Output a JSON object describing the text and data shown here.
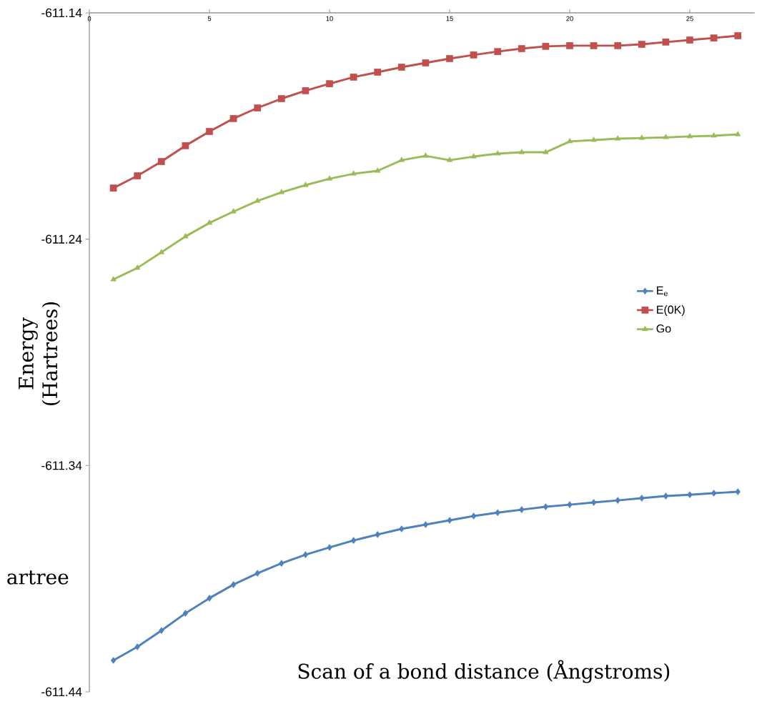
{
  "chart_data": {
    "type": "line",
    "xlabel": "Scan of a bond distance (Ångstroms)",
    "ylabel": "Energy (Hartrees)",
    "x": [
      1,
      2,
      3,
      4,
      5,
      6,
      7,
      8,
      9,
      10,
      11,
      12,
      13,
      14,
      15,
      16,
      17,
      18,
      19,
      20,
      21,
      22,
      23,
      24,
      25,
      26,
      27
    ],
    "series": [
      {
        "name": "E$_{e}$",
        "color": "#4f81bd",
        "marker": "diamond",
        "values": [
          -611.4261,
          -611.4201,
          -611.4129,
          -611.4053,
          -611.3986,
          -611.3926,
          -611.3876,
          -611.3832,
          -611.3794,
          -611.3762,
          -611.3731,
          -611.3705,
          -611.368,
          -611.3661,
          -611.3642,
          -611.3623,
          -611.3608,
          -611.3595,
          -611.3582,
          -611.3573,
          -611.3563,
          -611.3554,
          -611.3544,
          -611.3535,
          -611.3529,
          -611.3522,
          -611.3516
        ]
      },
      {
        "name": "E(0K)",
        "color": "#c0504d",
        "marker": "square",
        "values": [
          -611.2174,
          -611.212,
          -611.2057,
          -611.1987,
          -611.1924,
          -611.1867,
          -611.182,
          -611.1779,
          -611.1744,
          -611.1713,
          -611.1684,
          -611.1662,
          -611.164,
          -611.1621,
          -611.1602,
          -611.1586,
          -611.1571,
          -611.1558,
          -611.1548,
          -611.1545,
          -611.1545,
          -611.1545,
          -611.1539,
          -611.1529,
          -611.152,
          -611.1511,
          -611.1501
        ]
      },
      {
        "name": "Go",
        "color": "#9bbb59",
        "marker": "triangle",
        "values": [
          -611.2578,
          -611.2527,
          -611.2458,
          -611.2388,
          -611.2328,
          -611.2278,
          -611.2231,
          -611.2193,
          -611.2161,
          -611.2133,
          -611.2111,
          -611.2098,
          -611.2051,
          -611.2032,
          -611.2051,
          -611.2035,
          -611.2022,
          -611.2016,
          -611.2016,
          -611.1968,
          -611.1962,
          -611.1956,
          -611.1953,
          -611.195,
          -611.1946,
          -611.1943,
          -611.1937
        ]
      }
    ],
    "xlim": [
      0,
      27.7
    ],
    "ylim": [
      -611.44,
      -611.14
    ],
    "xticks": [
      0,
      5,
      10,
      15,
      20,
      25
    ],
    "yticks": [
      -611.44,
      -611.34,
      -611.24,
      -611.14
    ],
    "legend": "right",
    "line_style": "solid",
    "grid": false,
    "annotations": [
      "artree"
    ]
  }
}
